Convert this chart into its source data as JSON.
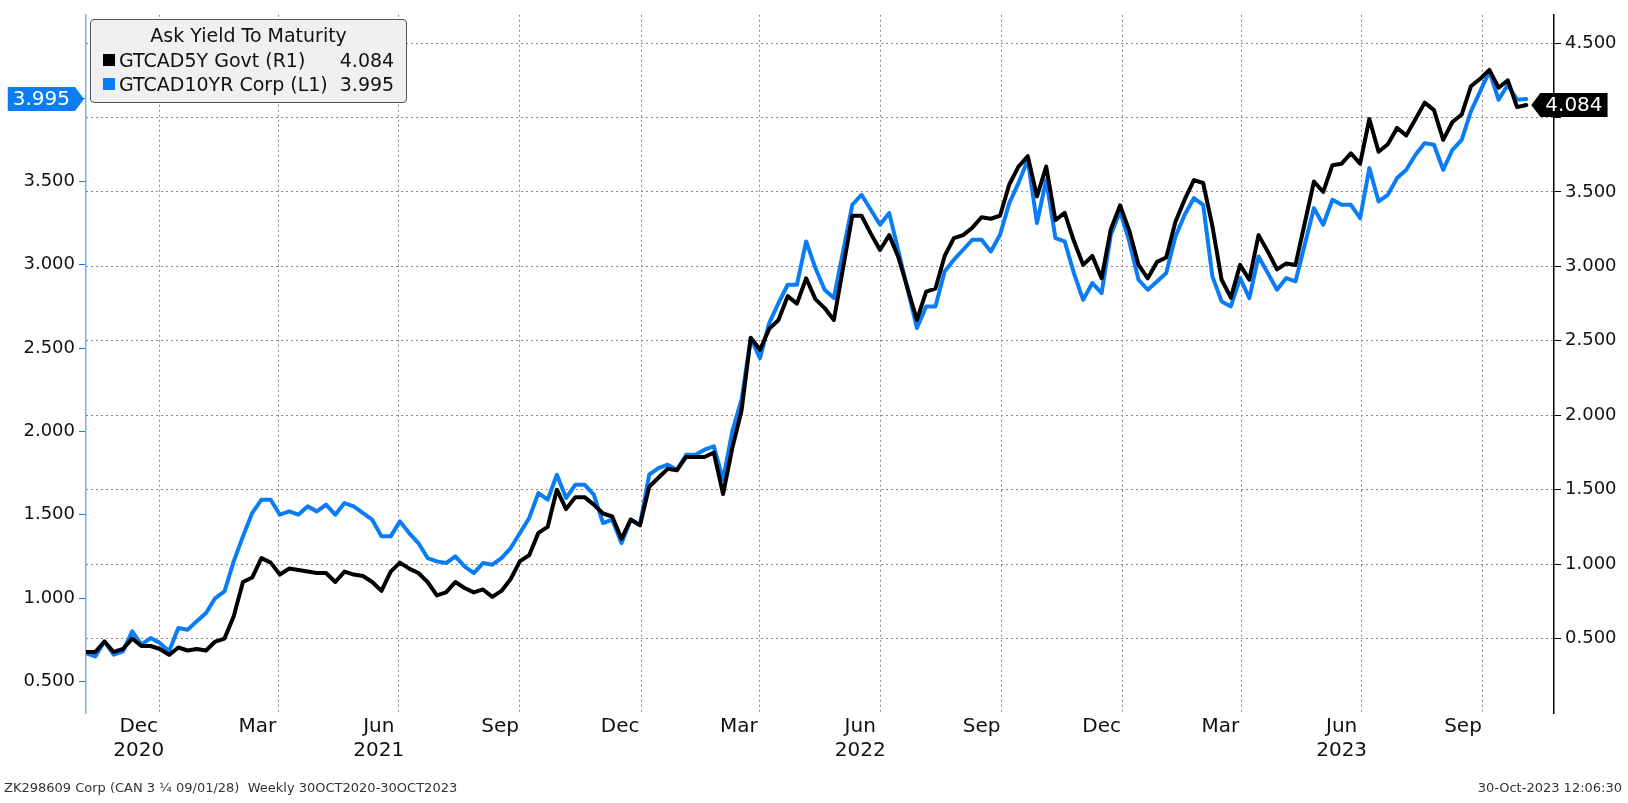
{
  "chart_data": {
    "type": "line",
    "legend": "top left",
    "legend_title": "Ask Yield To Maturity",
    "grid": true,
    "xlim": [
      "2020-11-06",
      "2023-11-24"
    ],
    "xticks": [
      {
        "value": "2020-12-16",
        "label": "Dec\n2020"
      },
      {
        "value": "2021-01-01",
        "label": null
      },
      {
        "value": "2021-03-16",
        "label": "Mar"
      },
      {
        "value": "2021-04-01",
        "label": null
      },
      {
        "value": "2021-06-16",
        "label": "Jun\n2021"
      },
      {
        "value": "2021-07-01",
        "label": null
      },
      {
        "value": "2021-09-16",
        "label": "Sep"
      },
      {
        "value": "2021-10-01",
        "label": null
      },
      {
        "value": "2021-12-16",
        "label": "Dec"
      },
      {
        "value": "2022-01-01",
        "label": null
      },
      {
        "value": "2022-03-16",
        "label": "Mar"
      },
      {
        "value": "2022-04-01",
        "label": null
      },
      {
        "value": "2022-06-16",
        "label": "Jun\n2022"
      },
      {
        "value": "2022-07-01",
        "label": null
      },
      {
        "value": "2022-09-16",
        "label": "Sep"
      },
      {
        "value": "2022-10-01",
        "label": null
      },
      {
        "value": "2022-12-16",
        "label": "Dec"
      },
      {
        "value": "2023-01-01",
        "label": null
      },
      {
        "value": "2023-03-16",
        "label": "Mar"
      },
      {
        "value": "2023-04-01",
        "label": null
      },
      {
        "value": "2023-06-16",
        "label": "Jun\n2023"
      },
      {
        "value": "2023-07-01",
        "label": null
      },
      {
        "value": "2023-09-16",
        "label": "Sep"
      },
      {
        "value": "2023-10-01",
        "label": null
      }
    ],
    "ylim": [
      0.31,
      4.5
    ],
    "yticks": [
      {
        "value": 0.5,
        "label": "0.500"
      },
      {
        "value": 1,
        "label": "1.000"
      },
      {
        "value": 1.5,
        "label": "1.500"
      },
      {
        "value": 2,
        "label": "2.000"
      },
      {
        "value": 2.5,
        "label": "2.500"
      },
      {
        "value": 3,
        "label": "3.000"
      },
      {
        "value": 3.5,
        "label": "3.500"
      },
      {
        "value": 3.995,
        "label": "3.995"
      },
      {
        "value": 4,
        "label": null
      }
    ],
    "y2lim": [
      0,
      4.69
    ],
    "y2ticks": [
      {
        "value": 0.5,
        "label": "0.500"
      },
      {
        "value": 1,
        "label": "1.000"
      },
      {
        "value": 1.5,
        "label": "1.500"
      },
      {
        "value": 2,
        "label": "2.000"
      },
      {
        "value": 2.5,
        "label": "2.500"
      },
      {
        "value": 3,
        "label": "3.000"
      },
      {
        "value": 3.5,
        "label": "3.500"
      },
      {
        "value": 4,
        "label": null
      },
      {
        "value": 4.5,
        "label": "4.500"
      }
    ],
    "x": [
      "2020-11-06",
      "2020-11-13",
      "2020-11-20",
      "2020-11-27",
      "2020-12-04",
      "2020-12-11",
      "2020-12-18",
      "2020-12-25",
      "2021-01-01",
      "2021-01-08",
      "2021-01-15",
      "2021-01-22",
      "2021-01-29",
      "2021-02-05",
      "2021-02-12",
      "2021-02-19",
      "2021-02-26",
      "2021-03-05",
      "2021-03-12",
      "2021-03-19",
      "2021-03-26",
      "2021-04-02",
      "2021-04-09",
      "2021-04-16",
      "2021-04-23",
      "2021-04-30",
      "2021-05-07",
      "2021-05-14",
      "2021-05-21",
      "2021-05-28",
      "2021-06-04",
      "2021-06-11",
      "2021-06-18",
      "2021-06-25",
      "2021-07-02",
      "2021-07-09",
      "2021-07-16",
      "2021-07-23",
      "2021-07-30",
      "2021-08-06",
      "2021-08-13",
      "2021-08-20",
      "2021-08-27",
      "2021-09-03",
      "2021-09-10",
      "2021-09-17",
      "2021-09-24",
      "2021-10-01",
      "2021-10-08",
      "2021-10-15",
      "2021-10-22",
      "2021-10-29",
      "2021-11-05",
      "2021-11-12",
      "2021-11-19",
      "2021-11-26",
      "2021-12-03",
      "2021-12-10",
      "2021-12-17",
      "2021-12-24",
      "2021-12-31",
      "2022-01-07",
      "2022-01-14",
      "2022-01-21",
      "2022-01-28",
      "2022-02-04",
      "2022-02-11",
      "2022-02-18",
      "2022-02-25",
      "2022-03-04",
      "2022-03-11",
      "2022-03-18",
      "2022-03-25",
      "2022-04-01",
      "2022-04-08",
      "2022-04-15",
      "2022-04-22",
      "2022-04-29",
      "2022-05-06",
      "2022-05-13",
      "2022-05-20",
      "2022-05-27",
      "2022-06-03",
      "2022-06-10",
      "2022-06-17",
      "2022-06-24",
      "2022-07-01",
      "2022-07-08",
      "2022-07-15",
      "2022-07-22",
      "2022-07-29",
      "2022-08-05",
      "2022-08-12",
      "2022-08-19",
      "2022-08-26",
      "2022-09-02",
      "2022-09-09",
      "2022-09-16",
      "2022-09-23",
      "2022-09-30",
      "2022-10-07",
      "2022-10-14",
      "2022-10-21",
      "2022-10-28",
      "2022-11-04",
      "2022-11-11",
      "2022-11-18",
      "2022-11-25",
      "2022-12-02",
      "2022-12-09",
      "2022-12-16",
      "2022-12-23",
      "2022-12-30",
      "2023-01-06",
      "2023-01-13",
      "2023-01-20",
      "2023-01-27",
      "2023-02-03",
      "2023-02-10",
      "2023-02-17",
      "2023-02-24",
      "2023-03-03",
      "2023-03-10",
      "2023-03-17",
      "2023-03-24",
      "2023-03-31",
      "2023-04-07",
      "2023-04-14",
      "2023-04-21",
      "2023-04-28",
      "2023-05-05",
      "2023-05-12",
      "2023-05-19",
      "2023-05-26",
      "2023-06-02",
      "2023-06-09",
      "2023-06-16",
      "2023-06-23",
      "2023-06-30",
      "2023-07-07",
      "2023-07-14",
      "2023-07-21",
      "2023-07-28",
      "2023-08-04",
      "2023-08-11",
      "2023-08-18",
      "2023-08-25",
      "2023-09-01",
      "2023-09-08",
      "2023-09-15",
      "2023-09-22",
      "2023-09-29",
      "2023-10-06",
      "2023-10-13",
      "2023-10-20",
      "2023-10-27",
      "2023-11-03"
    ],
    "series": [
      {
        "name": "GTCAD5Y Govt (R1) 4.084",
        "color": "#000000",
        "axis": "y2",
        "values": [
          0.41,
          0.41,
          0.48,
          0.41,
          0.43,
          0.5,
          0.45,
          0.45,
          0.43,
          0.39,
          0.44,
          0.42,
          0.43,
          0.42,
          0.48,
          0.5,
          0.65,
          0.88,
          0.91,
          1.04,
          1.01,
          0.93,
          0.97,
          0.96,
          0.95,
          0.94,
          0.94,
          0.88,
          0.95,
          0.93,
          0.92,
          0.88,
          0.82,
          0.95,
          1.01,
          0.97,
          0.94,
          0.88,
          0.79,
          0.81,
          0.88,
          0.84,
          0.81,
          0.83,
          0.78,
          0.82,
          0.9,
          1.02,
          1.06,
          1.21,
          1.25,
          1.5,
          1.37,
          1.45,
          1.45,
          1.4,
          1.34,
          1.32,
          1.17,
          1.3,
          1.26,
          1.52,
          1.58,
          1.64,
          1.63,
          1.72,
          1.72,
          1.72,
          1.75,
          1.47,
          1.78,
          2.03,
          2.52,
          2.44,
          2.58,
          2.64,
          2.8,
          2.75,
          2.92,
          2.78,
          2.72,
          2.64,
          2.99,
          3.34,
          3.34,
          3.22,
          3.11,
          3.21,
          3.06,
          2.85,
          2.64,
          2.83,
          2.85,
          3.07,
          3.19,
          3.21,
          3.26,
          3.33,
          3.32,
          3.34,
          3.55,
          3.67,
          3.74,
          3.47,
          3.67,
          3.31,
          3.36,
          3.17,
          3.01,
          3.07,
          2.92,
          3.25,
          3.41,
          3.24,
          3.01,
          2.92,
          3.03,
          3.06,
          3.3,
          3.45,
          3.58,
          3.56,
          3.27,
          2.91,
          2.79,
          3.01,
          2.91,
          3.21,
          3.1,
          2.98,
          3.02,
          3.01,
          3.29,
          3.57,
          3.5,
          3.68,
          3.69,
          3.76,
          3.69,
          3.99,
          3.77,
          3.82,
          3.93,
          3.88,
          3.99,
          4.1,
          4.05,
          3.85,
          3.97,
          4.02,
          4.21,
          4.26,
          4.32,
          4.2,
          4.25,
          4.07,
          4.084
        ],
        "value_labels": [
          null,
          null,
          null,
          null,
          null,
          null,
          null,
          null,
          null,
          null,
          null,
          null,
          null,
          null,
          null,
          null,
          null,
          null,
          null,
          null,
          null,
          null,
          null,
          null,
          null,
          null,
          null,
          null,
          null,
          null,
          null,
          null,
          null,
          null,
          null,
          null,
          null,
          null,
          null,
          null,
          null,
          null,
          null,
          null,
          null,
          null,
          null,
          null,
          null,
          null,
          null,
          null,
          null,
          null,
          null,
          null,
          null,
          null,
          null,
          null,
          null,
          null,
          null,
          null,
          null,
          null,
          null,
          null,
          null,
          null,
          null,
          null,
          null,
          null,
          null,
          null,
          null,
          null,
          null,
          null,
          null,
          null,
          null,
          null,
          null,
          null,
          null,
          null,
          null,
          null,
          null,
          null,
          null,
          null,
          null,
          null,
          null,
          null,
          null,
          null,
          null,
          null,
          null,
          null,
          null,
          null,
          null,
          null,
          null,
          null,
          null,
          null,
          null,
          null,
          null,
          null,
          null,
          null,
          null,
          null,
          null,
          null,
          null,
          null,
          null,
          null,
          null,
          null,
          null,
          null,
          null,
          null,
          null,
          null,
          null,
          null,
          null,
          null,
          null,
          null,
          null,
          null,
          null,
          null,
          null,
          null,
          null,
          null,
          null,
          null,
          null,
          null,
          null,
          null,
          null,
          null,
          "4.084"
        ]
      },
      {
        "name": "GTCAD10YR Corp (L1) 3.995",
        "color": "#0a7cf5",
        "axis": "y",
        "values": [
          0.67,
          0.65,
          0.74,
          0.66,
          0.68,
          0.8,
          0.72,
          0.76,
          0.73,
          0.68,
          0.82,
          0.81,
          0.86,
          0.91,
          1.0,
          1.04,
          1.22,
          1.37,
          1.51,
          1.59,
          1.59,
          1.5,
          1.52,
          1.5,
          1.55,
          1.52,
          1.56,
          1.5,
          1.57,
          1.55,
          1.51,
          1.47,
          1.37,
          1.37,
          1.46,
          1.39,
          1.33,
          1.24,
          1.22,
          1.21,
          1.25,
          1.19,
          1.15,
          1.21,
          1.2,
          1.24,
          1.3,
          1.39,
          1.48,
          1.63,
          1.59,
          1.74,
          1.6,
          1.68,
          1.68,
          1.62,
          1.45,
          1.47,
          1.33,
          1.47,
          1.44,
          1.74,
          1.78,
          1.8,
          1.77,
          1.86,
          1.86,
          1.89,
          1.91,
          1.71,
          2.0,
          2.19,
          2.56,
          2.44,
          2.65,
          2.77,
          2.88,
          2.88,
          3.14,
          2.98,
          2.85,
          2.8,
          3.08,
          3.36,
          3.42,
          3.33,
          3.24,
          3.31,
          3.08,
          2.85,
          2.62,
          2.75,
          2.75,
          2.96,
          3.03,
          3.09,
          3.15,
          3.15,
          3.08,
          3.18,
          3.37,
          3.49,
          3.63,
          3.25,
          3.51,
          3.16,
          3.14,
          2.95,
          2.79,
          2.89,
          2.83,
          3.18,
          3.32,
          3.14,
          2.91,
          2.85,
          2.9,
          2.95,
          3.17,
          3.3,
          3.4,
          3.36,
          2.93,
          2.78,
          2.75,
          2.92,
          2.8,
          3.05,
          2.95,
          2.85,
          2.92,
          2.9,
          3.12,
          3.34,
          3.24,
          3.39,
          3.36,
          3.36,
          3.28,
          3.58,
          3.38,
          3.42,
          3.52,
          3.57,
          3.66,
          3.73,
          3.72,
          3.57,
          3.69,
          3.75,
          3.92,
          4.04,
          4.16,
          3.99,
          4.08,
          3.99,
          3.995
        ]
      }
    ],
    "annotations": [
      "ZK298609 Corp (CAN 3 ¼ 09/01/28)  Weekly 30OCT2020-30OCT2023",
      "30-Oct-2023 12:06:30"
    ]
  }
}
